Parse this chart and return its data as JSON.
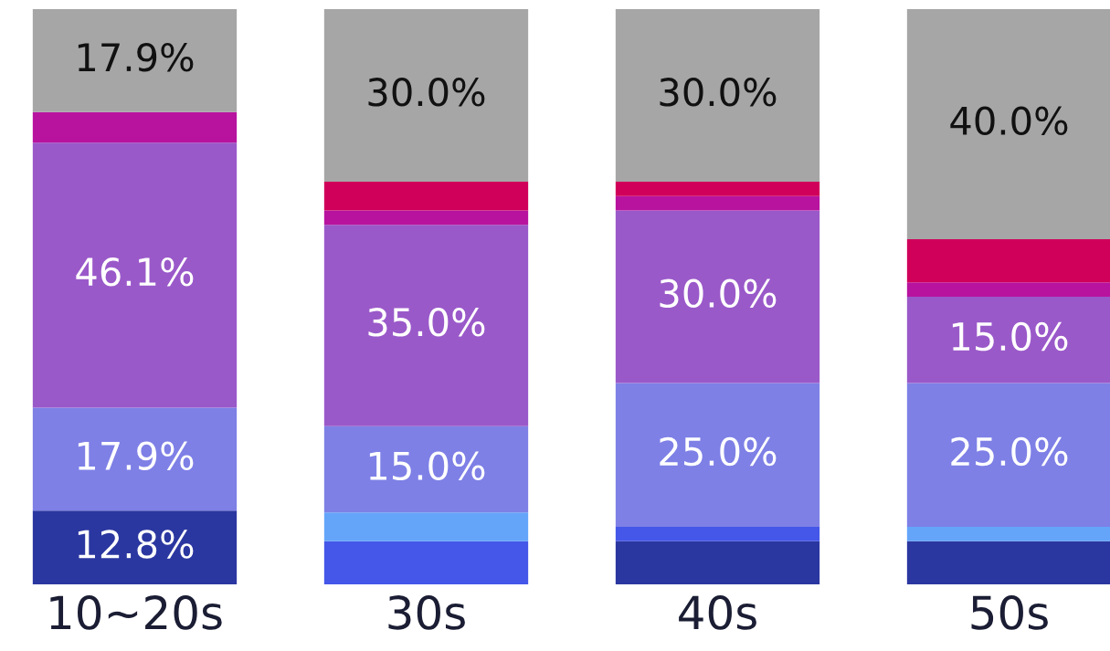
{
  "chart_data": {
    "type": "bar",
    "stacked": true,
    "categories": [
      "10~20s",
      "30s",
      "40s",
      "50s"
    ],
    "series": [
      {
        "color": "#2b37a0",
        "values": [
          12.8,
          0,
          7.5,
          7.5
        ],
        "value_labels": [
          "12.8%",
          null,
          null,
          null
        ]
      },
      {
        "color": "#4457e8",
        "values": [
          0,
          7.5,
          2.5,
          0
        ],
        "value_labels": [
          null,
          null,
          null,
          null
        ]
      },
      {
        "color": "#64a5fa",
        "values": [
          0,
          5,
          0,
          2.5
        ],
        "value_labels": [
          null,
          null,
          null,
          null
        ]
      },
      {
        "color": "#7e80e6",
        "values": [
          17.9,
          15,
          25,
          25
        ],
        "value_labels": [
          "17.9%",
          "15.0%",
          "25.0%",
          "25.0%"
        ]
      },
      {
        "color": "#9a59c9",
        "values": [
          46.1,
          35,
          30,
          15
        ],
        "value_labels": [
          "46.1%",
          "35.0%",
          "30.0%",
          "15.0%"
        ]
      },
      {
        "color": "#b8139f",
        "values": [
          5.3,
          2.5,
          2.5,
          2.5
        ],
        "value_labels": [
          null,
          null,
          null,
          null
        ]
      },
      {
        "color": "#d0005a",
        "values": [
          0,
          5,
          2.5,
          7.5
        ],
        "value_labels": [
          null,
          null,
          null,
          null
        ]
      },
      {
        "color": "#a6a6a6",
        "values": [
          17.9,
          30,
          30,
          40
        ],
        "value_labels": [
          "17.9%",
          "30.0%",
          "30.0%",
          "40.0%"
        ]
      }
    ]
  }
}
